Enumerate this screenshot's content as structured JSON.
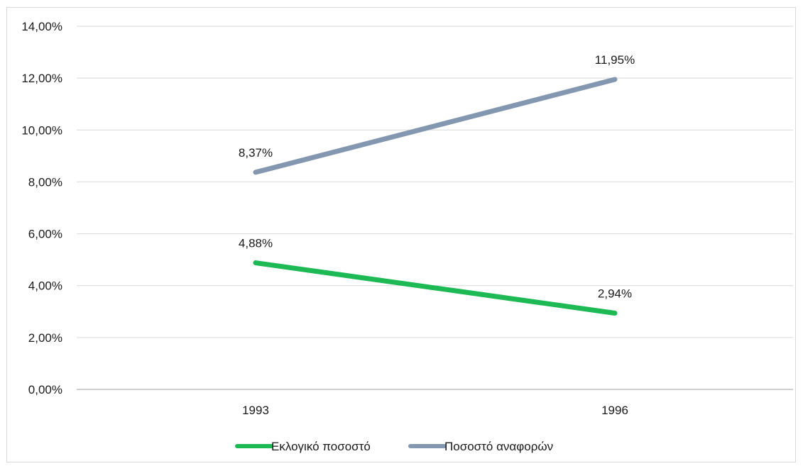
{
  "chart_data": {
    "type": "line",
    "title": "",
    "xlabel": "",
    "ylabel": "",
    "categories": [
      "1993",
      "1996"
    ],
    "ylim": [
      0,
      14
    ],
    "yticks": [
      "0,00%",
      "2,00%",
      "4,00%",
      "6,00%",
      "8,00%",
      "10,00%",
      "12,00%",
      "14,00%"
    ],
    "grid": true,
    "legend_position": "bottom",
    "series": [
      {
        "name": "Εκλογικό ποσοστό",
        "values": [
          4.88,
          2.94
        ],
        "labels": [
          "4,88%",
          "2,94%"
        ],
        "color": "#1db954"
      },
      {
        "name": "Ποσοστό αναφορών",
        "values": [
          8.37,
          11.95
        ],
        "labels": [
          "8,37%",
          "11,95%"
        ],
        "color": "#8497b0"
      }
    ]
  }
}
